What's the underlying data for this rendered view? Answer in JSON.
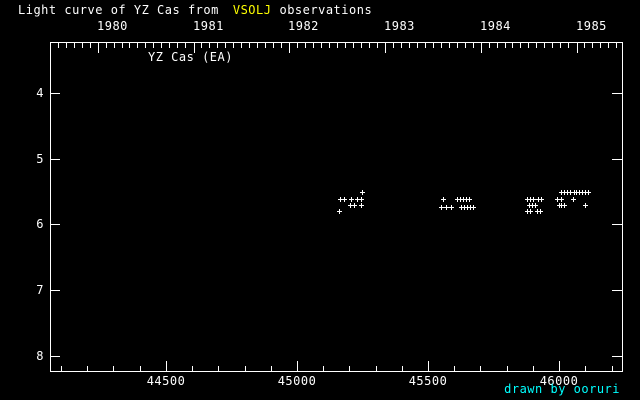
{
  "chart_data": {
    "type": "scatter",
    "title_parts": {
      "prefix": "Light curve of YZ Cas from",
      "highlight": "VSOLJ",
      "suffix": "observations"
    },
    "series_label": "YZ Cas (EA)",
    "credit": "drawn by ooruri",
    "colors": {
      "background": "#000000",
      "foreground": "#ffffff",
      "title_highlight": "#ffff00",
      "credit": "#00ffff",
      "marker": "#ffffff"
    },
    "x_unit": "JD-2400000",
    "x_range": [
      44058,
      46240
    ],
    "y_range": [
      3.24,
      8.23
    ],
    "y_direction": "magnitude increases downward",
    "axes": {
      "top": {
        "major_ticks": [
          {
            "label": "1980",
            "jd": 44239.5
          },
          {
            "label": "1981",
            "jd": 44605.5
          },
          {
            "label": "1982",
            "jd": 44970.5
          },
          {
            "label": "1983",
            "jd": 45335.5
          },
          {
            "label": "1984",
            "jd": 45700.5
          },
          {
            "label": "1985",
            "jd": 46066.5
          }
        ],
        "minor_step_days": 30.4375
      },
      "bottom": {
        "major_ticks": [
          {
            "label": "44500",
            "jd": 44500
          },
          {
            "label": "45000",
            "jd": 45000
          },
          {
            "label": "45500",
            "jd": 45500
          },
          {
            "label": "46000",
            "jd": 46000
          }
        ],
        "minor_step_days": 100,
        "minor_start": 44100,
        "minor_end": 46200
      },
      "left": {
        "major_ticks": [
          {
            "label": "4",
            "mag": 4
          },
          {
            "label": "5",
            "mag": 5
          },
          {
            "label": "6",
            "mag": 6
          },
          {
            "label": "7",
            "mag": 7
          },
          {
            "label": "8",
            "mag": 8
          }
        ]
      },
      "right": {
        "major_ticks": [
          4,
          5,
          6,
          7,
          8
        ]
      }
    },
    "points": [
      [
        45161,
        5.8
      ],
      [
        45165,
        5.62
      ],
      [
        45181,
        5.62
      ],
      [
        45207,
        5.62
      ],
      [
        45230,
        5.62
      ],
      [
        45245,
        5.62
      ],
      [
        45203,
        5.71
      ],
      [
        45219,
        5.71
      ],
      [
        45245,
        5.71
      ],
      [
        45249,
        5.5
      ],
      [
        45559,
        5.62
      ],
      [
        45612,
        5.62
      ],
      [
        45623,
        5.62
      ],
      [
        45635,
        5.62
      ],
      [
        45646,
        5.62
      ],
      [
        45658,
        5.62
      ],
      [
        45550,
        5.73
      ],
      [
        45570,
        5.73
      ],
      [
        45589,
        5.73
      ],
      [
        45627,
        5.73
      ],
      [
        45638,
        5.73
      ],
      [
        45650,
        5.73
      ],
      [
        45661,
        5.73
      ],
      [
        45673,
        5.73
      ],
      [
        45879,
        5.62
      ],
      [
        45890,
        5.62
      ],
      [
        45902,
        5.62
      ],
      [
        45921,
        5.62
      ],
      [
        45932,
        5.62
      ],
      [
        45887,
        5.71
      ],
      [
        45898,
        5.71
      ],
      [
        45909,
        5.71
      ],
      [
        45879,
        5.8
      ],
      [
        45890,
        5.8
      ],
      [
        45917,
        5.8
      ],
      [
        45928,
        5.8
      ],
      [
        45992,
        5.62
      ],
      [
        46008,
        5.62
      ],
      [
        46053,
        5.62
      ],
      [
        45998,
        5.71
      ],
      [
        46009,
        5.71
      ],
      [
        46020,
        5.71
      ],
      [
        46100,
        5.71
      ],
      [
        46009,
        5.51
      ],
      [
        46020,
        5.51
      ],
      [
        46032,
        5.51
      ],
      [
        46043,
        5.51
      ],
      [
        46055,
        5.51
      ],
      [
        46066,
        5.51
      ],
      [
        46077,
        5.51
      ],
      [
        46089,
        5.51
      ],
      [
        46100,
        5.51
      ],
      [
        46110,
        5.51
      ]
    ]
  }
}
